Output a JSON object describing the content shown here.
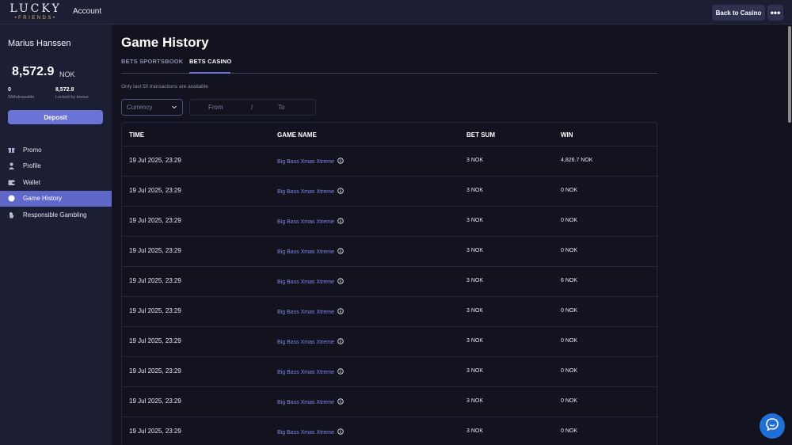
{
  "header": {
    "logo_top": "LUCKY",
    "logo_bottom": "•FRIENDS•",
    "account_label": "Account",
    "back_button": "Back to Casino",
    "more_button": "•••"
  },
  "sidebar": {
    "user_name": "Marius Hanssen",
    "balance": "8,572.9",
    "currency": "NOK",
    "withdrawable_value": "0",
    "withdrawable_label": "Withdrawable",
    "locked_value": "8,572.9",
    "locked_label": "Locked by bonus",
    "deposit_button": "Deposit",
    "nav": [
      {
        "label": "Promo",
        "icon": "gift-icon"
      },
      {
        "label": "Profile",
        "icon": "user-icon"
      },
      {
        "label": "Wallet",
        "icon": "wallet-icon"
      },
      {
        "label": "Game History",
        "icon": "history-icon",
        "active": true
      },
      {
        "label": "Responsible Gambling",
        "icon": "hand-icon"
      }
    ]
  },
  "main": {
    "title": "Game History",
    "tabs": [
      {
        "label": "BETS SPORTSBOOK",
        "active": false
      },
      {
        "label": "BETS CASINO",
        "active": true
      }
    ],
    "note": "Only last 50 transactions are available",
    "currency_placeholder": "Currency",
    "date_from": "From",
    "date_sep": "/",
    "date_to": "To",
    "table": {
      "headers": [
        "TIME",
        "GAME NAME",
        "BET SUM",
        "WIN"
      ],
      "rows": [
        {
          "time": "19 Jul 2025, 23:29",
          "game": "Big Bass Xmas Xtreme",
          "bet": "3 NOK",
          "win": "4,826.7 NOK"
        },
        {
          "time": "19 Jul 2025, 23:29",
          "game": "Big Bass Xmas Xtreme",
          "bet": "3 NOK",
          "win": "0 NOK"
        },
        {
          "time": "19 Jul 2025, 23:29",
          "game": "Big Bass Xmas Xtreme",
          "bet": "3 NOK",
          "win": "0 NOK"
        },
        {
          "time": "19 Jul 2025, 23:29",
          "game": "Big Bass Xmas Xtreme",
          "bet": "3 NOK",
          "win": "0 NOK"
        },
        {
          "time": "19 Jul 2025, 23:29",
          "game": "Big Bass Xmas Xtreme",
          "bet": "3 NOK",
          "win": "6 NOK"
        },
        {
          "time": "19 Jul 2025, 23:29",
          "game": "Big Bass Xmas Xtreme",
          "bet": "3 NOK",
          "win": "0 NOK"
        },
        {
          "time": "19 Jul 2025, 23:29",
          "game": "Big Bass Xmas Xtreme",
          "bet": "3 NOK",
          "win": "0 NOK"
        },
        {
          "time": "19 Jul 2025, 23:29",
          "game": "Big Bass Xmas Xtreme",
          "bet": "3 NOK",
          "win": "0 NOK"
        },
        {
          "time": "19 Jul 2025, 23:29",
          "game": "Big Bass Xmas Xtreme",
          "bet": "3 NOK",
          "win": "0 NOK"
        },
        {
          "time": "19 Jul 2025, 23:29",
          "game": "Big Bass Xmas Xtreme",
          "bet": "3 NOK",
          "win": "0 NOK"
        }
      ]
    }
  },
  "colors": {
    "background": "#12131f",
    "sidebar": "#1c1e33",
    "accent": "#6b74d6",
    "link": "#7e86e6",
    "chat": "#1f6fd6"
  }
}
